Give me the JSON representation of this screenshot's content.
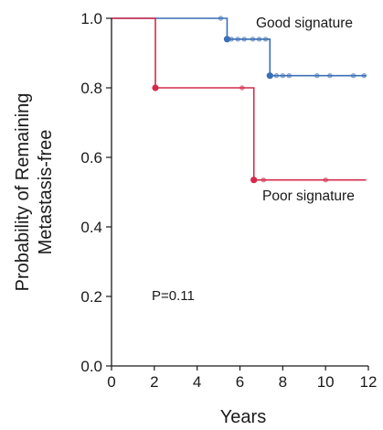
{
  "chart_data": {
    "type": "line",
    "subtype": "kaplan-meier step curves",
    "xlabel": "Years",
    "ylabel": [
      "Probability of Remaining",
      "Metastasis-free"
    ],
    "xlim": [
      0,
      12
    ],
    "ylim": [
      0,
      1.0
    ],
    "x_ticks": [
      0,
      2,
      4,
      6,
      8,
      10,
      12
    ],
    "y_ticks": [
      "0.0",
      "0.2",
      "0.4",
      "0.6",
      "0.8",
      "1.0"
    ],
    "grid": false,
    "annotation": "P=0.11",
    "series": [
      {
        "name": "Good signature",
        "color": "#3b6fb6",
        "steps": [
          [
            0,
            1.0
          ],
          [
            5.4,
            0.94
          ],
          [
            7.4,
            0.835
          ],
          [
            11.9,
            0.835
          ]
        ],
        "events": [
          [
            5.4,
            0.94
          ],
          [
            7.4,
            0.835
          ]
        ],
        "censored": [
          [
            5.1,
            1.0
          ],
          [
            5.6,
            0.94
          ],
          [
            5.9,
            0.94
          ],
          [
            6.2,
            0.94
          ],
          [
            6.6,
            0.94
          ],
          [
            6.9,
            0.94
          ],
          [
            7.2,
            0.94
          ],
          [
            7.7,
            0.835
          ],
          [
            8.0,
            0.835
          ],
          [
            8.3,
            0.835
          ],
          [
            9.6,
            0.835
          ],
          [
            10.2,
            0.835
          ],
          [
            11.3,
            0.835
          ],
          [
            11.8,
            0.835
          ]
        ]
      },
      {
        "name": "Poor signature",
        "color": "#d42a4a",
        "steps": [
          [
            0,
            1.0
          ],
          [
            2.05,
            0.8
          ],
          [
            6.65,
            0.535
          ],
          [
            11.9,
            0.535
          ]
        ],
        "events": [
          [
            2.05,
            0.8
          ],
          [
            6.65,
            0.535
          ]
        ],
        "censored": [
          [
            6.1,
            0.8
          ],
          [
            7.1,
            0.535
          ],
          [
            10.0,
            0.535
          ]
        ]
      }
    ]
  }
}
